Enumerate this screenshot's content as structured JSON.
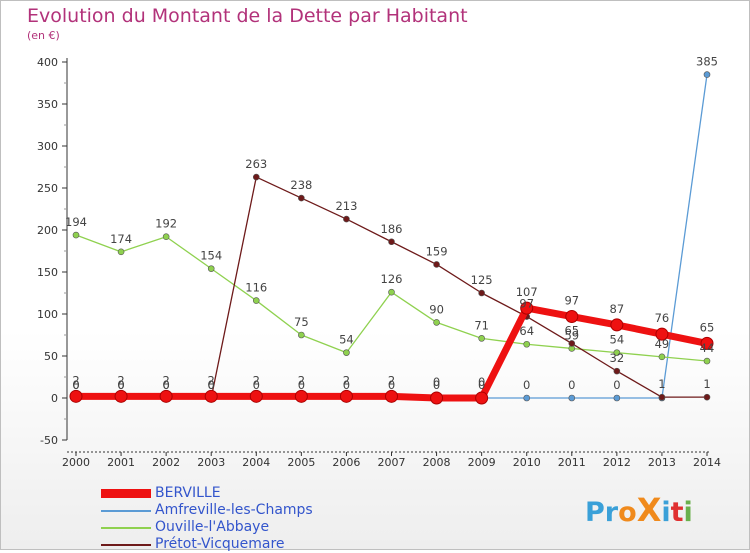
{
  "title": "Evolution du Montant de la Dette par Habitant",
  "subtitle": "(en €)",
  "logo": {
    "text": "ProXiti",
    "letters": [
      "P",
      "r",
      "o",
      "X",
      "i",
      "t",
      "i"
    ],
    "colors": [
      "#3aa0d8",
      "#3aa0d8",
      "#f08a1c",
      "#f08a1c",
      "#3aa0d8",
      "#e03030",
      "#6ab04c"
    ]
  },
  "chart_data": {
    "type": "line",
    "x": [
      "2000",
      "2001",
      "2002",
      "2003",
      "2004",
      "2005",
      "2006",
      "2007",
      "2008",
      "2009",
      "2010",
      "2011",
      "2012",
      "2013",
      "2014"
    ],
    "ylim": [
      -50,
      400
    ],
    "yticks": [
      "-50",
      "0",
      "50",
      "100",
      "150",
      "200",
      "250",
      "300",
      "350",
      "400"
    ],
    "grid": false,
    "legend_position": "bottom-left",
    "series": [
      {
        "name": "BERVILLE",
        "color": "#ee1111",
        "values": [
          2,
          2,
          2,
          2,
          2,
          2,
          2,
          2,
          0,
          0,
          107,
          97,
          87,
          76,
          65
        ],
        "labels": [
          "2",
          "2",
          "2",
          "2",
          "2",
          "2",
          "2",
          "2",
          "0",
          "0",
          "107",
          "97",
          "87",
          "76",
          "65"
        ]
      },
      {
        "name": "Amfreville-les-Champs",
        "color": "#5b9bd5",
        "values": [
          0,
          0,
          0,
          0,
          0,
          0,
          0,
          0,
          0,
          0,
          0,
          0,
          0,
          0,
          385
        ],
        "labels": [
          "0",
          "0",
          "0",
          "0",
          "0",
          "0",
          "0",
          "0",
          "0",
          "0",
          "0",
          "0",
          "0",
          "",
          "385"
        ]
      },
      {
        "name": "Ouville-l'Abbaye",
        "color": "#8fd14f",
        "values": [
          194,
          174,
          192,
          154,
          116,
          75,
          54,
          126,
          90,
          71,
          64,
          59,
          54,
          49,
          44
        ],
        "labels": [
          "194",
          "174",
          "192",
          "154",
          "116",
          "75",
          "54",
          "126",
          "90",
          "71",
          "64",
          "59",
          "54",
          "49",
          "44"
        ]
      },
      {
        "name": "Prétot-Vicquemare",
        "color": "#6e1a1a",
        "values": [
          0,
          0,
          0,
          0,
          263,
          238,
          213,
          186,
          159,
          125,
          97,
          65,
          32,
          1,
          1
        ],
        "labels": [
          "0",
          "0",
          "0",
          "0",
          "263",
          "238",
          "213",
          "186",
          "159",
          "125",
          "97",
          "65",
          "32",
          "1",
          "1"
        ]
      }
    ]
  }
}
